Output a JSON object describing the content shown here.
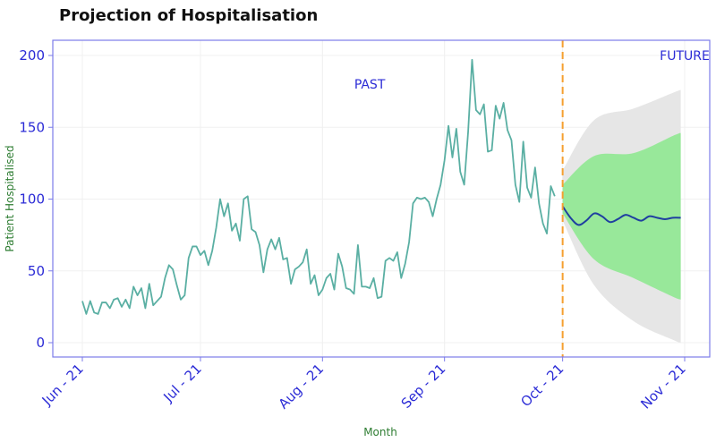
{
  "chart_data": {
    "type": "line",
    "title": "Projection of Hospitalisation",
    "xlabel": "Month",
    "ylabel": "Patient Hospitalised",
    "ylim": [
      -10,
      210
    ],
    "yticks": [
      0,
      50,
      100,
      150,
      200
    ],
    "xticks": [
      "Jun - 21",
      "Jul - 21",
      "Aug - 21",
      "Sep - 21",
      "Oct - 21",
      "Nov - 21"
    ],
    "xtick_days": [
      0,
      30,
      61,
      92,
      122,
      153
    ],
    "x_unit": "days from Jun - 21",
    "grid": true,
    "annotations": [
      {
        "text": "PAST",
        "x": 73,
        "y": 180
      },
      {
        "text": "FUTURE",
        "x": 153,
        "y": 200
      }
    ],
    "divider_day": 122,
    "colors": {
      "past": "#5aafa3",
      "forecast": "#1f3fa0",
      "band_inner": "#98e89a",
      "band_outer": "#e6e6e6",
      "divider": "#f5a030",
      "frame": "#7b7bea"
    },
    "series": [
      {
        "role": "past",
        "x_start": 0,
        "values": [
          29,
          20,
          29,
          21,
          20,
          28,
          28,
          24,
          30,
          31,
          25,
          30,
          24,
          39,
          33,
          38,
          24,
          41,
          26,
          29,
          32,
          45,
          54,
          51,
          40,
          30,
          33,
          59,
          67,
          67,
          61,
          64,
          54,
          64,
          80,
          100,
          88,
          97,
          78,
          83,
          71,
          100,
          102,
          79,
          77,
          68,
          49,
          65,
          72,
          65,
          73,
          58,
          59,
          41,
          51,
          53,
          56,
          65,
          41,
          47,
          33,
          37,
          45,
          48,
          37,
          62,
          53,
          38,
          37,
          34,
          68,
          39,
          39,
          38,
          45,
          31,
          32,
          57,
          59,
          57,
          63,
          45,
          55,
          70,
          97,
          101,
          100,
          101,
          98,
          88,
          100,
          110,
          127,
          151,
          129,
          149,
          119,
          110,
          147,
          197,
          162,
          159,
          166,
          133,
          134,
          165,
          156,
          167,
          148,
          141,
          110,
          98,
          140,
          108,
          101,
          122,
          97,
          83,
          76,
          109,
          102
        ]
      },
      {
        "role": "forecast",
        "x": [
          122,
          124,
          126,
          128,
          130,
          132,
          134,
          136,
          138,
          140,
          142,
          144,
          146,
          148,
          150,
          152
        ],
        "values": [
          95,
          87,
          82,
          85,
          90,
          88,
          84,
          86,
          89,
          87,
          85,
          88,
          87,
          86,
          87,
          87
        ]
      }
    ],
    "band_inner": {
      "x": [
        122,
        130,
        140,
        150,
        152
      ],
      "lower": [
        90,
        58,
        45,
        32,
        30
      ],
      "upper": [
        110,
        130,
        132,
        144,
        146
      ]
    },
    "band_outer": {
      "x": [
        122,
        130,
        140,
        150,
        152
      ],
      "lower": [
        85,
        40,
        15,
        2,
        0
      ],
      "upper": [
        120,
        155,
        163,
        174,
        176
      ]
    }
  }
}
